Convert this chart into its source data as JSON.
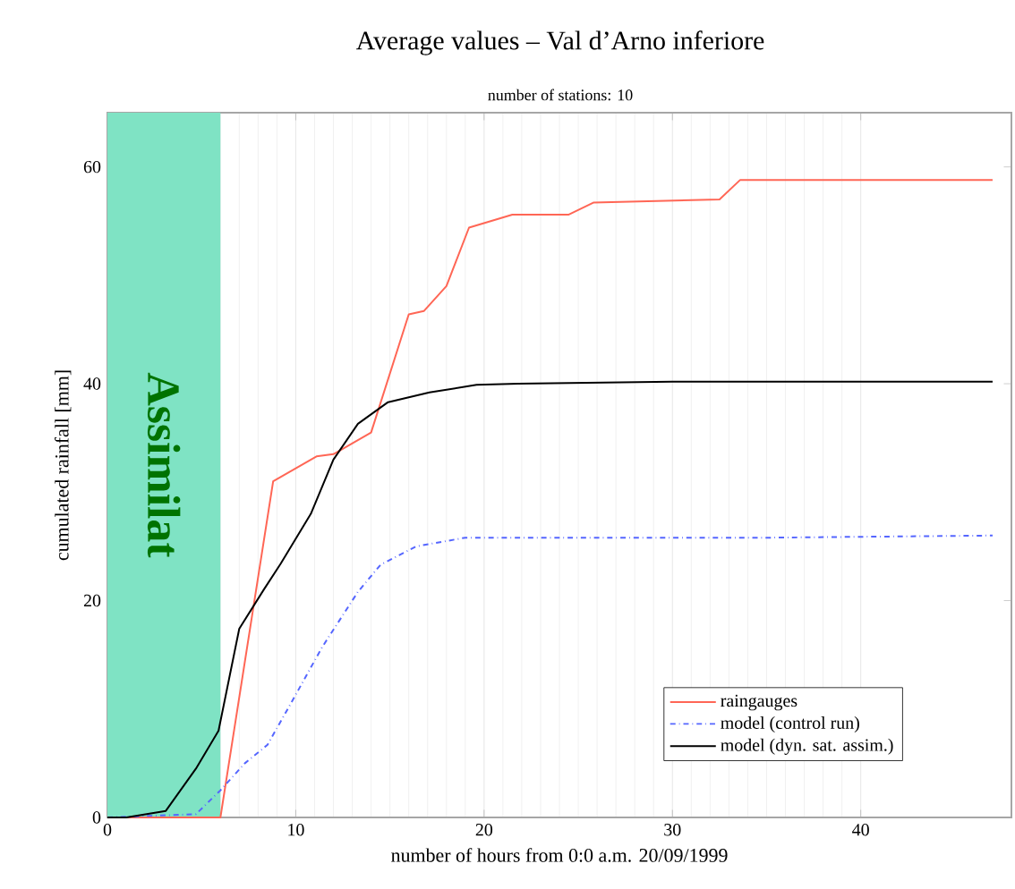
{
  "chart_data": {
    "type": "line",
    "title": "Average values – Val d’Arno inferiore",
    "subtitle": "number of stations: 10",
    "xlabel": "number of hours from 0:0 a.m. 20/09/1999",
    "ylabel": "cumulated rainfall [mm]",
    "xlim": [
      0,
      48
    ],
    "ylim": [
      0,
      65
    ],
    "xticks": [
      0,
      10,
      20,
      30,
      40
    ],
    "yticks": [
      0,
      20,
      40,
      60
    ],
    "grid": "x",
    "legend": "bottom right",
    "bands": [
      {
        "axis": "x",
        "from": 0,
        "to": 6,
        "label": "Assimilat",
        "color": "#7fe3c4"
      }
    ],
    "series": [
      {
        "name": "raingauges",
        "color": "#ff6655",
        "line_style": "solid",
        "x": [
          0,
          6,
          8.8,
          11.1,
          12,
          14,
          16,
          16.8,
          18,
          19.2,
          21.5,
          24.5,
          25.8,
          32.5,
          33.6,
          47
        ],
        "values": [
          0,
          0,
          31,
          33.3,
          33.5,
          35.5,
          46.4,
          46.7,
          49,
          54.4,
          55.6,
          55.6,
          56.7,
          57,
          58.8,
          58.8
        ]
      },
      {
        "name": "model (control run)",
        "color": "#5566ff",
        "line_style": "dashdot",
        "x": [
          0,
          4.7,
          6,
          7.3,
          8.5,
          9.8,
          11.4,
          13.3,
          14.5,
          16.4,
          19,
          22.8,
          35,
          47
        ],
        "values": [
          0,
          0.3,
          2.5,
          5,
          6.7,
          10.7,
          15.7,
          20.8,
          23.3,
          25,
          25.8,
          25.8,
          25.8,
          26
        ]
      },
      {
        "name": "model (dyn. sat. assim.)",
        "color": "#000000",
        "line_style": "solid",
        "x": [
          0,
          1,
          3.1,
          4.7,
          5.9,
          7,
          8.3,
          9.2,
          10.8,
          12,
          13.3,
          14.9,
          17.1,
          19.6,
          21.8,
          30,
          47
        ],
        "values": [
          0,
          0,
          0.6,
          4.5,
          8,
          17.4,
          21,
          23.4,
          28,
          33,
          36.3,
          38.3,
          39.2,
          39.9,
          40,
          40.2,
          40.2
        ]
      }
    ]
  }
}
